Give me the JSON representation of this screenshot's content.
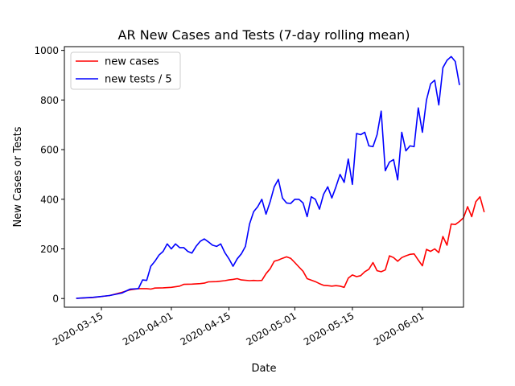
{
  "chart_data": {
    "type": "line",
    "title": "AR New Cases and Tests (7-day rolling mean)",
    "xlabel": "Date",
    "ylabel": "New Cases or Tests",
    "x_range": [
      "2020-03-06",
      "2020-06-11"
    ],
    "ylim": [
      -35,
      1015
    ],
    "x_ticks": [
      {
        "date": "2020-03-15",
        "label": "2020-03-15"
      },
      {
        "date": "2020-04-01",
        "label": "2020-04-01"
      },
      {
        "date": "2020-04-15",
        "label": "2020-04-15"
      },
      {
        "date": "2020-05-01",
        "label": "2020-05-01"
      },
      {
        "date": "2020-05-15",
        "label": "2020-05-15"
      },
      {
        "date": "2020-06-01",
        "label": "2020-06-01"
      }
    ],
    "y_ticks": [
      {
        "value": 0,
        "label": "0"
      },
      {
        "value": 200,
        "label": "200"
      },
      {
        "value": 400,
        "label": "400"
      },
      {
        "value": 600,
        "label": "600"
      },
      {
        "value": 800,
        "label": "800"
      },
      {
        "value": 1000,
        "label": "1000"
      }
    ],
    "grid": false,
    "legend_position": "top-left",
    "series": [
      {
        "name": "new cases",
        "color": "#ff0000",
        "points": [
          [
            "2020-03-09",
            1
          ],
          [
            "2020-03-13",
            4
          ],
          [
            "2020-03-17",
            12
          ],
          [
            "2020-03-20",
            25
          ],
          [
            "2020-03-22",
            35
          ],
          [
            "2020-03-24",
            40
          ],
          [
            "2020-03-26",
            40
          ],
          [
            "2020-03-27",
            38
          ],
          [
            "2020-03-28",
            42
          ],
          [
            "2020-03-30",
            43
          ],
          [
            "2020-04-01",
            45
          ],
          [
            "2020-04-03",
            50
          ],
          [
            "2020-04-04",
            57
          ],
          [
            "2020-04-06",
            58
          ],
          [
            "2020-04-08",
            60
          ],
          [
            "2020-04-09",
            62
          ],
          [
            "2020-04-10",
            67
          ],
          [
            "2020-04-12",
            68
          ],
          [
            "2020-04-14",
            72
          ],
          [
            "2020-04-15",
            75
          ],
          [
            "2020-04-16",
            77
          ],
          [
            "2020-04-17",
            80
          ],
          [
            "2020-04-18",
            75
          ],
          [
            "2020-04-20",
            72
          ],
          [
            "2020-04-21",
            73
          ],
          [
            "2020-04-22",
            72
          ],
          [
            "2020-04-23",
            73
          ],
          [
            "2020-04-24",
            100
          ],
          [
            "2020-04-25",
            120
          ],
          [
            "2020-04-26",
            150
          ],
          [
            "2020-04-27",
            155
          ],
          [
            "2020-04-28",
            162
          ],
          [
            "2020-04-29",
            168
          ],
          [
            "2020-04-30",
            162
          ],
          [
            "2020-05-01",
            145
          ],
          [
            "2020-05-02",
            127
          ],
          [
            "2020-05-03",
            110
          ],
          [
            "2020-05-04",
            80
          ],
          [
            "2020-05-05",
            74
          ],
          [
            "2020-05-06",
            68
          ],
          [
            "2020-05-07",
            60
          ],
          [
            "2020-05-08",
            53
          ],
          [
            "2020-05-09",
            52
          ],
          [
            "2020-05-10",
            50
          ],
          [
            "2020-05-11",
            52
          ],
          [
            "2020-05-12",
            50
          ],
          [
            "2020-05-13",
            45
          ],
          [
            "2020-05-14",
            82
          ],
          [
            "2020-05-15",
            95
          ],
          [
            "2020-05-16",
            88
          ],
          [
            "2020-05-17",
            92
          ],
          [
            "2020-05-18",
            108
          ],
          [
            "2020-05-19",
            118
          ],
          [
            "2020-05-20",
            145
          ],
          [
            "2020-05-21",
            112
          ],
          [
            "2020-05-22",
            108
          ],
          [
            "2020-05-23",
            115
          ],
          [
            "2020-05-24",
            172
          ],
          [
            "2020-05-25",
            165
          ],
          [
            "2020-05-26",
            150
          ],
          [
            "2020-05-27",
            165
          ],
          [
            "2020-05-28",
            172
          ],
          [
            "2020-05-29",
            178
          ],
          [
            "2020-05-30",
            180
          ],
          [
            "2020-05-31",
            155
          ],
          [
            "2020-06-01",
            132
          ],
          [
            "2020-06-02",
            198
          ],
          [
            "2020-06-03",
            190
          ],
          [
            "2020-06-04",
            200
          ],
          [
            "2020-06-05",
            185
          ],
          [
            "2020-06-06",
            250
          ],
          [
            "2020-06-07",
            215
          ],
          [
            "2020-06-08",
            300
          ],
          [
            "2020-06-09",
            298
          ],
          [
            "2020-06-10",
            310
          ],
          [
            "2020-06-11",
            325
          ],
          [
            "2020-06-12",
            370
          ],
          [
            "2020-06-13",
            330
          ],
          [
            "2020-06-14",
            390
          ],
          [
            "2020-06-15",
            410
          ],
          [
            "2020-06-16",
            350
          ]
        ]
      },
      {
        "name": "new tests / 5",
        "color": "#0000ff",
        "points": [
          [
            "2020-03-09",
            1
          ],
          [
            "2020-03-13",
            5
          ],
          [
            "2020-03-17",
            12
          ],
          [
            "2020-03-20",
            22
          ],
          [
            "2020-03-21",
            30
          ],
          [
            "2020-03-22",
            38
          ],
          [
            "2020-03-24",
            40
          ],
          [
            "2020-03-25",
            75
          ],
          [
            "2020-03-26",
            73
          ],
          [
            "2020-03-27",
            130
          ],
          [
            "2020-03-28",
            150
          ],
          [
            "2020-03-29",
            175
          ],
          [
            "2020-03-30",
            190
          ],
          [
            "2020-03-31",
            220
          ],
          [
            "2020-04-01",
            200
          ],
          [
            "2020-04-02",
            220
          ],
          [
            "2020-04-03",
            205
          ],
          [
            "2020-04-04",
            205
          ],
          [
            "2020-04-05",
            190
          ],
          [
            "2020-04-06",
            183
          ],
          [
            "2020-04-07",
            210
          ],
          [
            "2020-04-08",
            230
          ],
          [
            "2020-04-09",
            240
          ],
          [
            "2020-04-10",
            228
          ],
          [
            "2020-04-11",
            215
          ],
          [
            "2020-04-12",
            210
          ],
          [
            "2020-04-13",
            220
          ],
          [
            "2020-04-14",
            185
          ],
          [
            "2020-04-15",
            160
          ],
          [
            "2020-04-16",
            130
          ],
          [
            "2020-04-17",
            160
          ],
          [
            "2020-04-18",
            180
          ],
          [
            "2020-04-19",
            210
          ],
          [
            "2020-04-20",
            300
          ],
          [
            "2020-04-21",
            350
          ],
          [
            "2020-04-22",
            370
          ],
          [
            "2020-04-23",
            400
          ],
          [
            "2020-04-24",
            340
          ],
          [
            "2020-04-25",
            390
          ],
          [
            "2020-04-26",
            450
          ],
          [
            "2020-04-27",
            480
          ],
          [
            "2020-04-28",
            405
          ],
          [
            "2020-04-29",
            385
          ],
          [
            "2020-04-30",
            383
          ],
          [
            "2020-05-01",
            400
          ],
          [
            "2020-05-02",
            400
          ],
          [
            "2020-05-03",
            385
          ],
          [
            "2020-05-04",
            330
          ],
          [
            "2020-05-05",
            410
          ],
          [
            "2020-05-06",
            400
          ],
          [
            "2020-05-07",
            360
          ],
          [
            "2020-05-08",
            420
          ],
          [
            "2020-05-09",
            450
          ],
          [
            "2020-05-10",
            405
          ],
          [
            "2020-05-11",
            450
          ],
          [
            "2020-05-12",
            500
          ],
          [
            "2020-05-13",
            468
          ],
          [
            "2020-05-14",
            562
          ],
          [
            "2020-05-15",
            460
          ],
          [
            "2020-05-16",
            665
          ],
          [
            "2020-05-17",
            660
          ],
          [
            "2020-05-18",
            670
          ],
          [
            "2020-05-19",
            615
          ],
          [
            "2020-05-20",
            612
          ],
          [
            "2020-05-21",
            660
          ],
          [
            "2020-05-22",
            755
          ],
          [
            "2020-05-23",
            515
          ],
          [
            "2020-05-24",
            550
          ],
          [
            "2020-05-25",
            560
          ],
          [
            "2020-05-26",
            478
          ],
          [
            "2020-05-27",
            670
          ],
          [
            "2020-05-28",
            595
          ],
          [
            "2020-05-29",
            615
          ],
          [
            "2020-05-30",
            612
          ],
          [
            "2020-05-31",
            768
          ],
          [
            "2020-06-01",
            670
          ],
          [
            "2020-06-02",
            800
          ],
          [
            "2020-06-03",
            865
          ],
          [
            "2020-06-04",
            880
          ],
          [
            "2020-06-05",
            780
          ],
          [
            "2020-06-06",
            930
          ],
          [
            "2020-06-07",
            960
          ],
          [
            "2020-06-08",
            975
          ],
          [
            "2020-06-09",
            955
          ],
          [
            "2020-06-10",
            862
          ]
        ]
      }
    ]
  }
}
